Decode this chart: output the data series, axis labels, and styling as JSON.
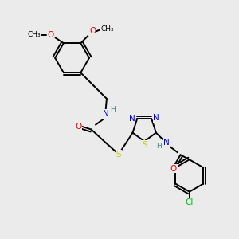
{
  "bg_color": "#ebebeb",
  "atom_colors": {
    "C": "#000000",
    "N": "#0000ee",
    "O": "#ee0000",
    "S": "#cccc00",
    "Cl": "#00bb00",
    "H": "#4a8080"
  },
  "bond_lw": 1.4,
  "font_size": 7.5,
  "font_size_small": 6.5
}
